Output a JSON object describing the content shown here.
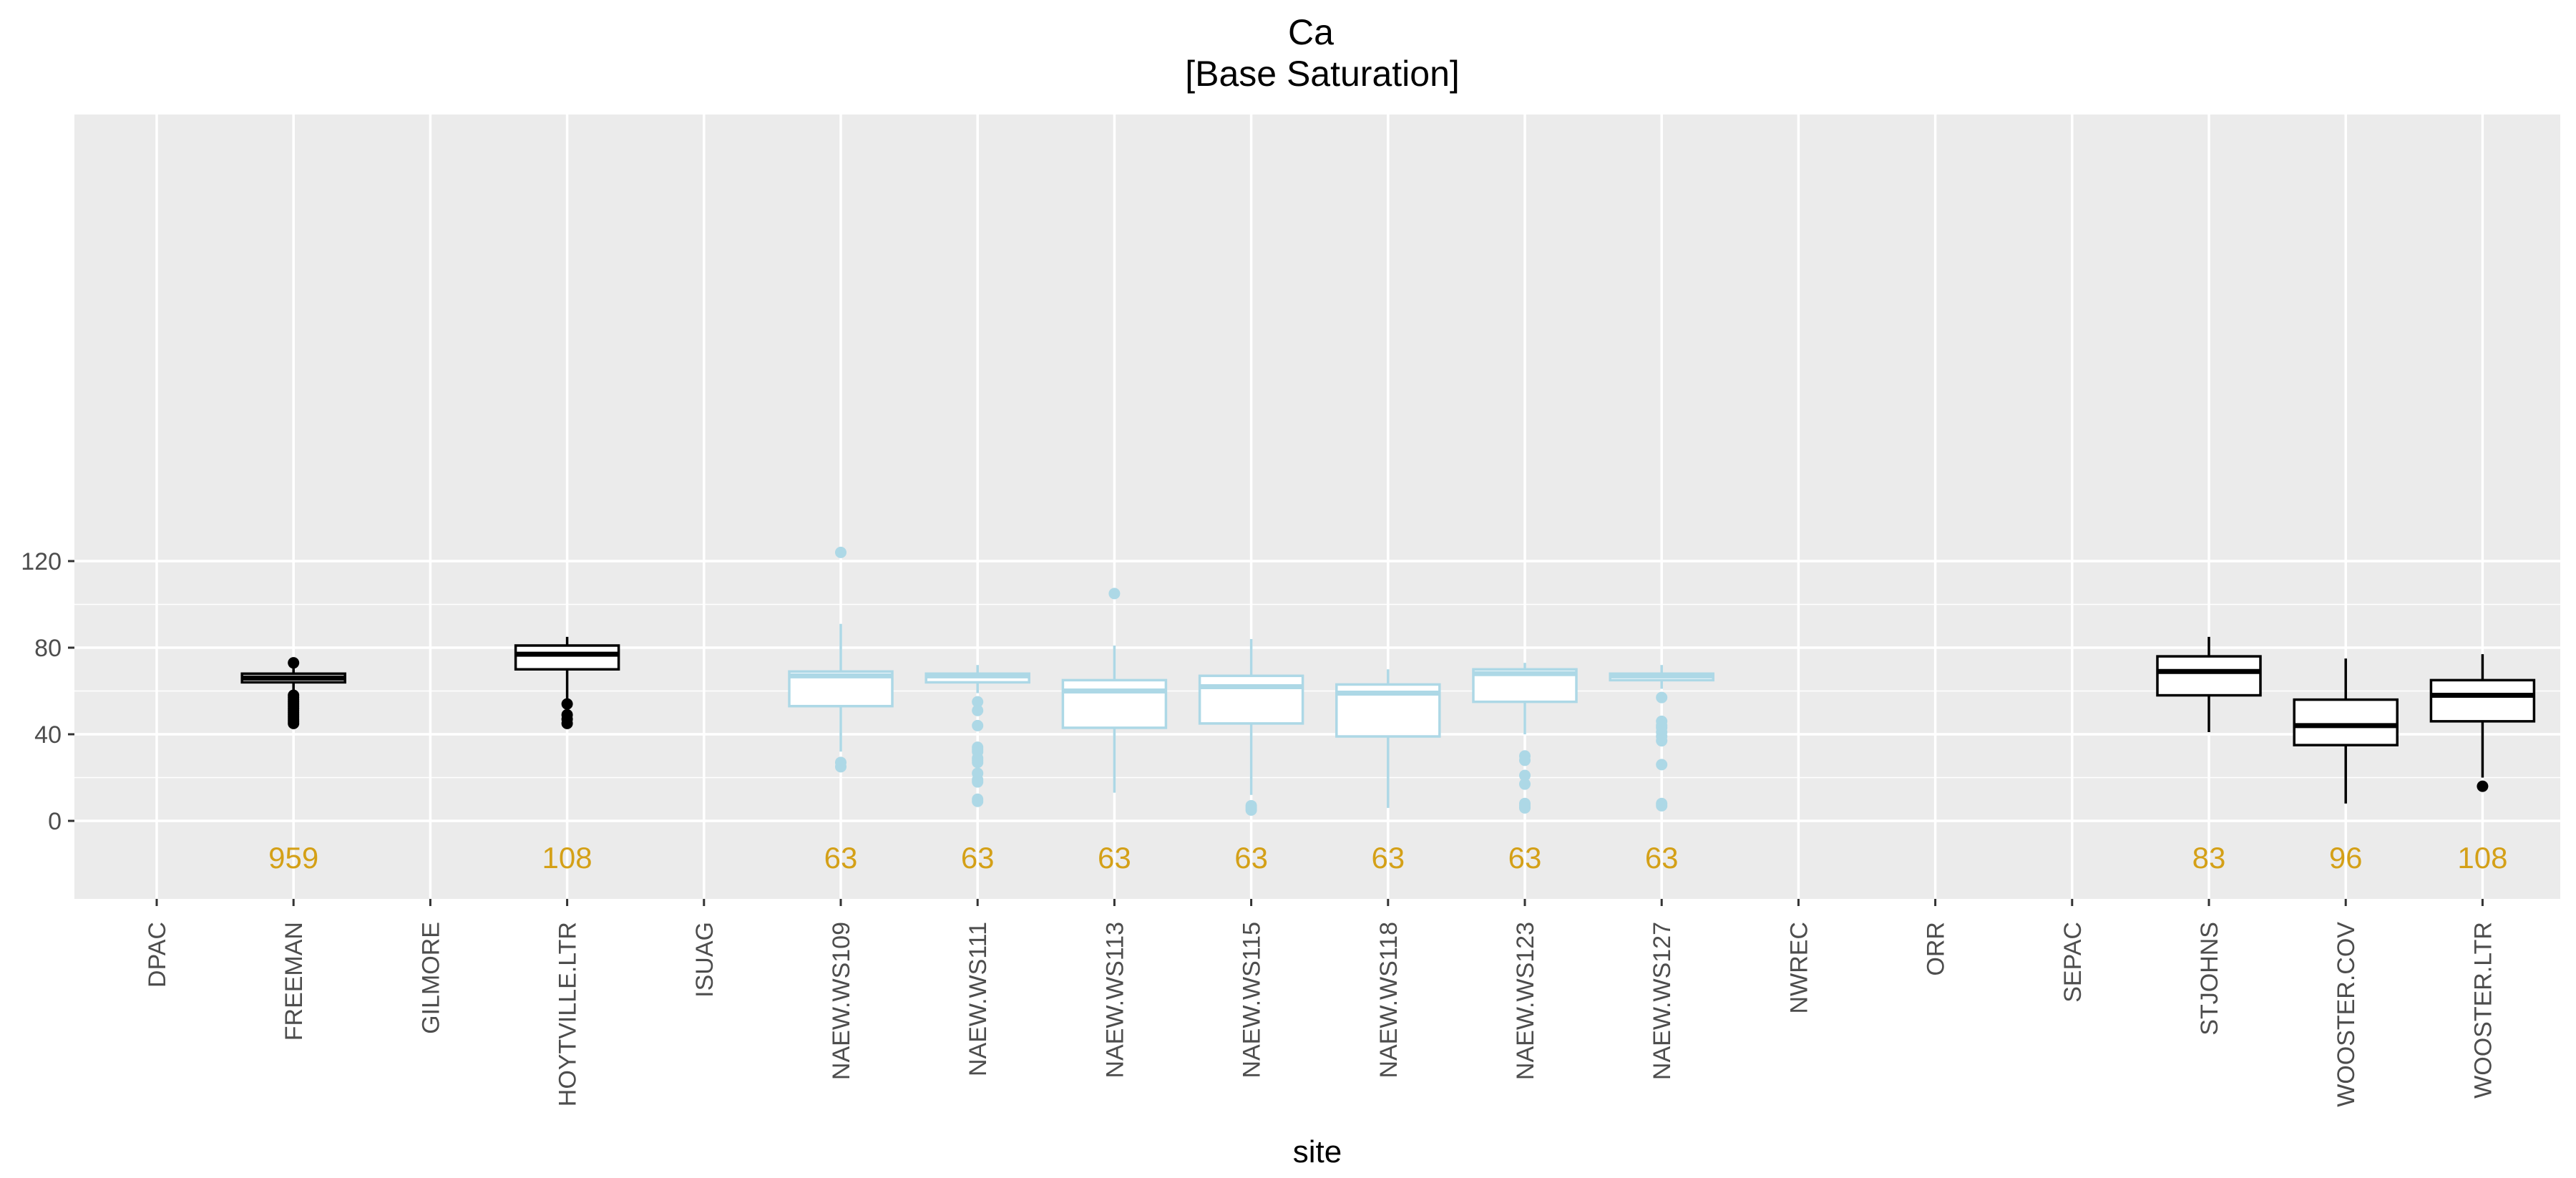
{
  "chart_data": {
    "type": "box",
    "title": "Ca",
    "subtitle": "[Base Saturation]",
    "xlabel": "site",
    "ylabel": "",
    "ylim": [
      -14.5,
      130
    ],
    "yticks": [
      0,
      40,
      80,
      120
    ],
    "grid": true,
    "count_color": "#D4A017",
    "categories": [
      "DPAC",
      "FREEMAN",
      "GILMORE",
      "HOYTVILLE.LTR",
      "ISUAG",
      "NAEW.WS109",
      "NAEW.WS111",
      "NAEW.WS113",
      "NAEW.WS115",
      "NAEW.WS118",
      "NAEW.WS123",
      "NAEW.WS127",
      "NWREC",
      "ORR",
      "SEPAC",
      "STJOHNS",
      "WOOSTER.COV",
      "WOOSTER.LTR"
    ],
    "boxes": [
      {
        "site": "FREEMAN",
        "color": "#000000",
        "q1": 64,
        "median": 66,
        "q3": 68,
        "whisker_low": 59,
        "whisker_high": 73,
        "outliers": [
          73,
          58,
          57,
          56,
          55,
          54,
          53,
          52,
          51,
          50,
          49,
          48,
          47,
          46,
          45
        ],
        "n": "959"
      },
      {
        "site": "HOYTVILLE.LTR",
        "color": "#000000",
        "q1": 70,
        "median": 77,
        "q3": 81,
        "whisker_low": 54,
        "whisker_high": 85,
        "outliers": [
          54,
          49,
          47,
          45
        ],
        "n": "108"
      },
      {
        "site": "NAEW.WS109",
        "color": "#ADD8E6",
        "q1": 53,
        "median": 67,
        "q3": 69,
        "whisker_low": 32,
        "whisker_high": 91,
        "outliers": [
          124,
          27,
          25
        ],
        "n": "63"
      },
      {
        "site": "NAEW.WS111",
        "color": "#ADD8E6",
        "q1": 64,
        "median": 67,
        "q3": 68,
        "whisker_low": 59,
        "whisker_high": 72,
        "outliers": [
          55,
          51,
          44,
          34,
          33,
          32,
          29,
          28,
          27,
          22,
          19,
          18,
          10,
          9
        ],
        "n": "63"
      },
      {
        "site": "NAEW.WS113",
        "color": "#ADD8E6",
        "q1": 43,
        "median": 60,
        "q3": 65,
        "whisker_low": 13,
        "whisker_high": 81,
        "outliers": [
          105
        ],
        "n": "63"
      },
      {
        "site": "NAEW.WS115",
        "color": "#ADD8E6",
        "q1": 45,
        "median": 62,
        "q3": 67,
        "whisker_low": 12,
        "whisker_high": 84,
        "outliers": [
          7,
          6,
          5
        ],
        "n": "63"
      },
      {
        "site": "NAEW.WS118",
        "color": "#ADD8E6",
        "q1": 39,
        "median": 59,
        "q3": 63,
        "whisker_low": 6,
        "whisker_high": 70,
        "outliers": [],
        "n": "63"
      },
      {
        "site": "NAEW.WS123",
        "color": "#ADD8E6",
        "q1": 55,
        "median": 68,
        "q3": 70,
        "whisker_low": 40,
        "whisker_high": 73,
        "outliers": [
          30,
          28,
          21,
          17,
          8,
          7,
          6
        ],
        "n": "63"
      },
      {
        "site": "NAEW.WS127",
        "color": "#ADD8E6",
        "q1": 65,
        "median": 67,
        "q3": 68,
        "whisker_low": 61,
        "whisker_high": 72,
        "outliers": [
          57,
          46,
          44,
          43,
          41,
          39,
          37,
          26,
          8,
          7
        ],
        "n": "63"
      },
      {
        "site": "STJOHNS",
        "color": "#000000",
        "q1": 58,
        "median": 69,
        "q3": 76,
        "whisker_low": 41,
        "whisker_high": 85,
        "outliers": [],
        "n": "83"
      },
      {
        "site": "WOOSTER.COV",
        "color": "#000000",
        "q1": 35,
        "median": 44,
        "q3": 56,
        "whisker_low": 8,
        "whisker_high": 75,
        "outliers": [],
        "n": "96"
      },
      {
        "site": "WOOSTER.LTR",
        "color": "#000000",
        "q1": 46,
        "median": 58,
        "q3": 65,
        "whisker_low": 20,
        "whisker_high": 77,
        "outliers": [
          16
        ],
        "n": "108"
      }
    ]
  }
}
